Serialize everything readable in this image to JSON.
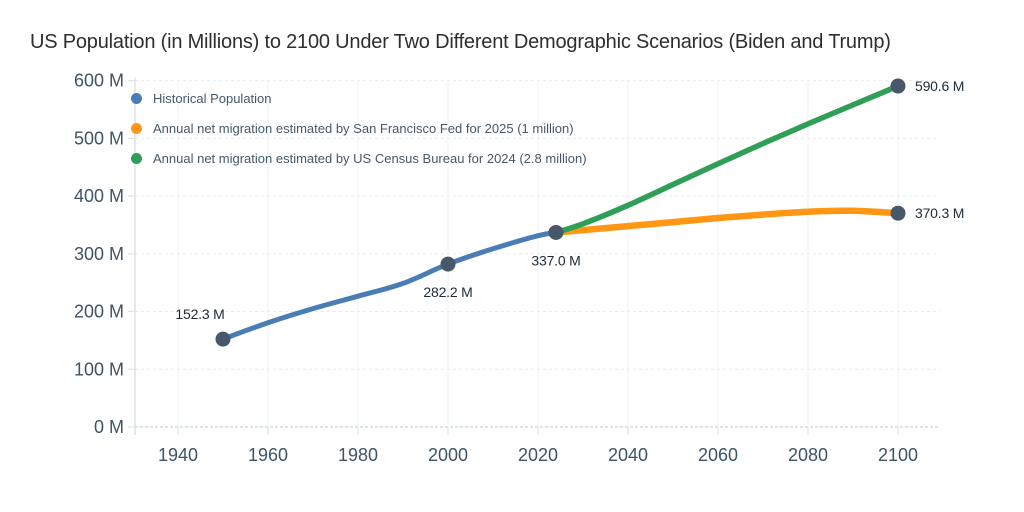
{
  "title": "US Population (in Millions) to 2100 Under Two Different Demographic Scenarios (Biden and Trump)",
  "colors": {
    "title_text": "#2e2e2e",
    "tick_text": "#3e5566",
    "legend_text": "#44596b",
    "point_label": "#1d2c37",
    "marker": "#47586a",
    "y_axis": "#d2dce1",
    "x_axis": "#c6d6dd",
    "grid_h": "#e5ecef",
    "grid_v": "#eef2f4",
    "tick_stub": "#dde4e8",
    "historical": "#4a7db5",
    "sf_fed": "#ff9714",
    "census": "#2f9e56"
  },
  "chart_data": {
    "type": "line",
    "title": "US Population (in Millions) to 2100 Under Two Different Demographic Scenarios (Biden and Trump)",
    "xlabel": "",
    "ylabel": "",
    "ylim": [
      0,
      600
    ],
    "xlim": [
      1940,
      2100
    ],
    "grid": true,
    "legend_position": "top-left",
    "x_ticks": [
      {
        "v": 1940,
        "label": "1940"
      },
      {
        "v": 1960,
        "label": "1960"
      },
      {
        "v": 1980,
        "label": "1980"
      },
      {
        "v": 2000,
        "label": "2000"
      },
      {
        "v": 2020,
        "label": "2020"
      },
      {
        "v": 2040,
        "label": "2040"
      },
      {
        "v": 2060,
        "label": "2060"
      },
      {
        "v": 2080,
        "label": "2080"
      },
      {
        "v": 2100,
        "label": "2100"
      }
    ],
    "y_ticks": [
      {
        "v": 0,
        "label": "0 M"
      },
      {
        "v": 100,
        "label": "100 M"
      },
      {
        "v": 200,
        "label": "200 M"
      },
      {
        "v": 300,
        "label": "300 M"
      },
      {
        "v": 400,
        "label": "400 M"
      },
      {
        "v": 500,
        "label": "500 M"
      },
      {
        "v": 600,
        "label": "600 M"
      }
    ],
    "series": [
      {
        "key": "historical",
        "name": "Historical Population",
        "color": "#4a7db5",
        "points": [
          [
            1950,
            152.3
          ],
          [
            1960,
            180.7
          ],
          [
            1970,
            205.1
          ],
          [
            1980,
            226.5
          ],
          [
            1990,
            248.7
          ],
          [
            2000,
            282.2
          ],
          [
            2010,
            308.7
          ],
          [
            2020,
            331.4
          ],
          [
            2024,
            337.0
          ]
        ]
      },
      {
        "key": "sf-fed",
        "name": "Annual net migration estimated by San Francisco Fed for 2025 (1 million)",
        "color": "#ff9714",
        "points": [
          [
            2024,
            337.0
          ],
          [
            2030,
            341
          ],
          [
            2040,
            348
          ],
          [
            2050,
            355
          ],
          [
            2060,
            362
          ],
          [
            2070,
            368
          ],
          [
            2080,
            373
          ],
          [
            2090,
            374.5
          ],
          [
            2100,
            370.3
          ]
        ]
      },
      {
        "key": "census",
        "name": "Annual net migration estimated by US Census Bureau for 2024 (2.8 million)",
        "color": "#2f9e56",
        "points": [
          [
            2024,
            337.0
          ],
          [
            2030,
            352
          ],
          [
            2040,
            384
          ],
          [
            2050,
            420
          ],
          [
            2060,
            456
          ],
          [
            2070,
            491
          ],
          [
            2080,
            525
          ],
          [
            2090,
            558
          ],
          [
            2100,
            590.6
          ]
        ]
      }
    ],
    "markers": [
      {
        "year": 1950,
        "value": 152.3
      },
      {
        "year": 2000,
        "value": 282.2
      },
      {
        "year": 2024,
        "value": 337.0
      },
      {
        "year": 2100,
        "value": 370.3
      },
      {
        "year": 2100,
        "value": 590.6
      }
    ],
    "point_labels": [
      {
        "text": "152.3 M",
        "year": 1950,
        "value": 152.3,
        "placement": "above-left"
      },
      {
        "text": "282.2 M",
        "year": 2000,
        "value": 282.2,
        "placement": "below"
      },
      {
        "text": "337.0 M",
        "year": 2024,
        "value": 337.0,
        "placement": "below"
      },
      {
        "text": "370.3 M",
        "year": 2100,
        "value": 370.3,
        "placement": "right"
      },
      {
        "text": "590.6 M",
        "year": 2100,
        "value": 590.6,
        "placement": "right"
      }
    ]
  }
}
